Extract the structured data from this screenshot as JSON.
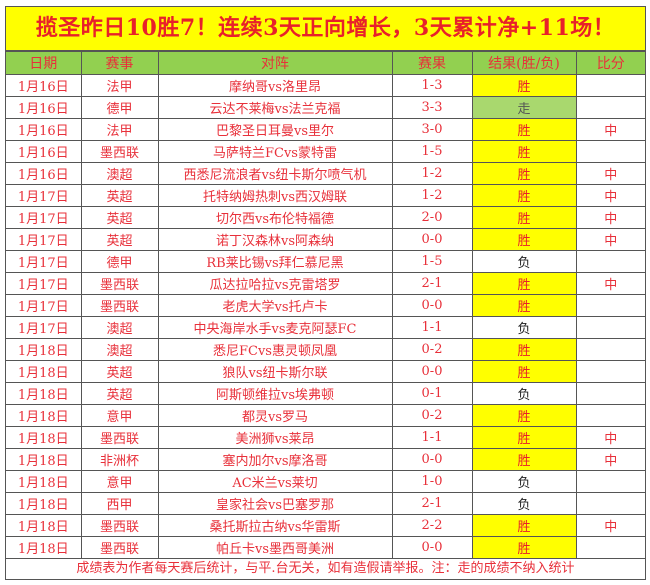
{
  "title": "揽圣昨日10胜7！连续3天正向增长，3天累计净+11场！",
  "headers": [
    "日期",
    "赛事",
    "对阵",
    "赛果",
    "结果(胜/负)",
    "比分"
  ],
  "rows": [
    [
      "1月16日",
      "法甲",
      "摩纳哥vs洛里昂",
      "1-3",
      "胜",
      ""
    ],
    [
      "1月16日",
      "德甲",
      "云达不莱梅vs法兰克福",
      "3-3",
      "走",
      ""
    ],
    [
      "1月16日",
      "法甲",
      "巴黎圣日耳曼vs里尔",
      "3-0",
      "胜",
      "中"
    ],
    [
      "1月16日",
      "墨西联",
      "马萨特兰FCvs蒙特雷",
      "1-5",
      "胜",
      ""
    ],
    [
      "1月16日",
      "澳超",
      "西悉尼流浪者vs纽卡斯尔喷气机",
      "1-2",
      "胜",
      "中"
    ],
    [
      "1月17日",
      "英超",
      "托特纳姆热刺vs西汉姆联",
      "1-2",
      "胜",
      "中"
    ],
    [
      "1月17日",
      "英超",
      "切尔西vs布伦特福德",
      "2-0",
      "胜",
      "中"
    ],
    [
      "1月17日",
      "英超",
      "诺丁汉森林vs阿森纳",
      "0-0",
      "胜",
      "中"
    ],
    [
      "1月17日",
      "德甲",
      "RB莱比锡vs拜仁慕尼黑",
      "1-5",
      "负",
      ""
    ],
    [
      "1月17日",
      "墨西联",
      "瓜达拉哈拉vs克雷塔罗",
      "2-1",
      "胜",
      "中"
    ],
    [
      "1月17日",
      "墨西联",
      "老虎大学vs托卢卡",
      "0-0",
      "胜",
      ""
    ],
    [
      "1月17日",
      "澳超",
      "中央海岸水手vs麦克阿瑟FC",
      "1-1",
      "负",
      ""
    ],
    [
      "1月18日",
      "澳超",
      "悉尼FCvs惠灵顿凤凰",
      "0-2",
      "胜",
      ""
    ],
    [
      "1月18日",
      "英超",
      "狼队vs纽卡斯尔联",
      "0-0",
      "胜",
      ""
    ],
    [
      "1月18日",
      "英超",
      "阿斯顿维拉vs埃弗顿",
      "0-1",
      "负",
      ""
    ],
    [
      "1月18日",
      "意甲",
      "都灵vs罗马",
      "0-2",
      "胜",
      ""
    ],
    [
      "1月18日",
      "墨西联",
      "美洲狮vs莱昂",
      "1-1",
      "胜",
      "中"
    ],
    [
      "1月18日",
      "非洲杯",
      "塞内加尔vs摩洛哥",
      "0-0",
      "胜",
      "中"
    ],
    [
      "1月18日",
      "意甲",
      "AC米兰vs莱切",
      "1-0",
      "负",
      ""
    ],
    [
      "1月18日",
      "西甲",
      "皇家社会vs巴塞罗那",
      "2-1",
      "负",
      ""
    ],
    [
      "1月18日",
      "墨西联",
      "桑托斯拉古纳vs华雷斯",
      "2-2",
      "胜",
      "中"
    ],
    [
      "1月18日",
      "墨西联",
      "帕丘卡vs墨西哥美洲",
      "0-0",
      "胜",
      ""
    ]
  ],
  "footer": "成绩表为作者每天赛后统计，与平.台无关，如有造假请举报。注：走的成绩不纳入统计",
  "colors": {
    "win": "#ffff00",
    "draw": "#a9d86e",
    "header": "#92d050",
    "text": "#e8303a"
  }
}
